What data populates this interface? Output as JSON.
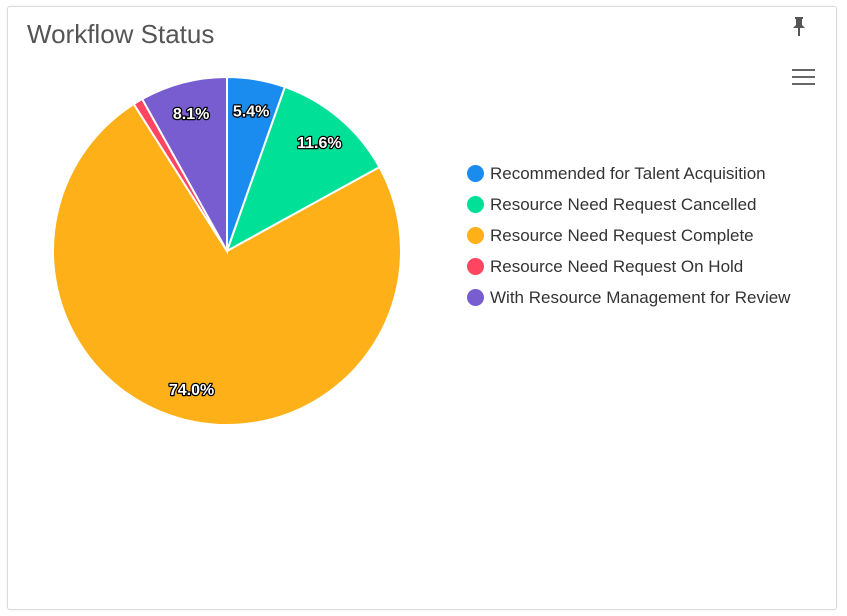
{
  "widget": {
    "title": "Workflow Status",
    "pin_icon": "pin-icon",
    "menu_icon": "hamburger-menu-icon"
  },
  "chart_data": {
    "type": "pie",
    "title": "Workflow Status",
    "slices": [
      {
        "label": "Recommended for Talent Acquisition",
        "value": 5.4,
        "display": "5.4%",
        "color": "#1a8cf0"
      },
      {
        "label": "Resource Need Request Cancelled",
        "value": 11.6,
        "display": "11.6%",
        "color": "#00e096"
      },
      {
        "label": "Resource Need Request Complete",
        "value": 74.0,
        "display": "74.0%",
        "color": "#feb019"
      },
      {
        "label": "Resource Need Request On Hold",
        "value": 0.9,
        "display": "",
        "color": "#ff4560"
      },
      {
        "label": "With Resource Management for Review",
        "value": 8.1,
        "display": "8.1%",
        "color": "#775dd0"
      }
    ],
    "legend_position": "right"
  }
}
